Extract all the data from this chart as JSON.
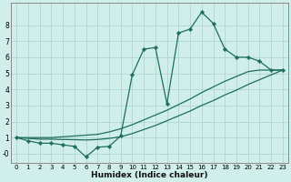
{
  "xlabel": "Humidex (Indice chaleur)",
  "bg_color": "#d0eeea",
  "grid_color": "#b0d5ce",
  "line_color": "#1e6e60",
  "x_values": [
    0,
    1,
    2,
    3,
    4,
    5,
    6,
    7,
    8,
    9,
    10,
    11,
    12,
    13,
    14,
    15,
    16,
    17,
    18,
    19,
    20,
    21,
    22,
    23
  ],
  "line_jagged": [
    1.0,
    0.8,
    0.65,
    0.65,
    0.55,
    0.45,
    -0.2,
    0.4,
    0.45,
    1.1,
    4.9,
    6.5,
    6.6,
    3.1,
    7.5,
    7.75,
    8.8,
    8.1,
    6.5,
    6.0,
    6.0,
    5.75,
    5.2,
    5.2
  ],
  "line_upper": [
    1.0,
    1.0,
    1.0,
    1.0,
    1.05,
    1.1,
    1.15,
    1.2,
    1.35,
    1.55,
    1.8,
    2.1,
    2.4,
    2.7,
    3.05,
    3.4,
    3.8,
    4.15,
    4.5,
    4.8,
    5.1,
    5.2,
    5.2,
    5.2
  ],
  "line_lower": [
    1.0,
    0.95,
    0.9,
    0.9,
    0.88,
    0.87,
    0.85,
    0.88,
    0.95,
    1.05,
    1.25,
    1.5,
    1.75,
    2.05,
    2.35,
    2.65,
    3.0,
    3.3,
    3.65,
    3.95,
    4.3,
    4.6,
    4.9,
    5.2
  ],
  "ylim": [
    -0.6,
    9.4
  ],
  "xlim": [
    -0.5,
    23.5
  ],
  "yticks": [
    0,
    1,
    2,
    3,
    4,
    5,
    6,
    7,
    8
  ],
  "ytick_labels": [
    "-0",
    "1",
    "2",
    "3",
    "4",
    "5",
    "6",
    "7",
    "8"
  ],
  "xticks": [
    0,
    1,
    2,
    3,
    4,
    5,
    6,
    7,
    8,
    9,
    10,
    11,
    12,
    13,
    14,
    15,
    16,
    17,
    18,
    19,
    20,
    21,
    22,
    23
  ],
  "markersize": 2.3,
  "linewidth": 0.9,
  "tick_fontsize_x": 5.0,
  "tick_fontsize_y": 5.5,
  "xlabel_fontsize": 6.5
}
